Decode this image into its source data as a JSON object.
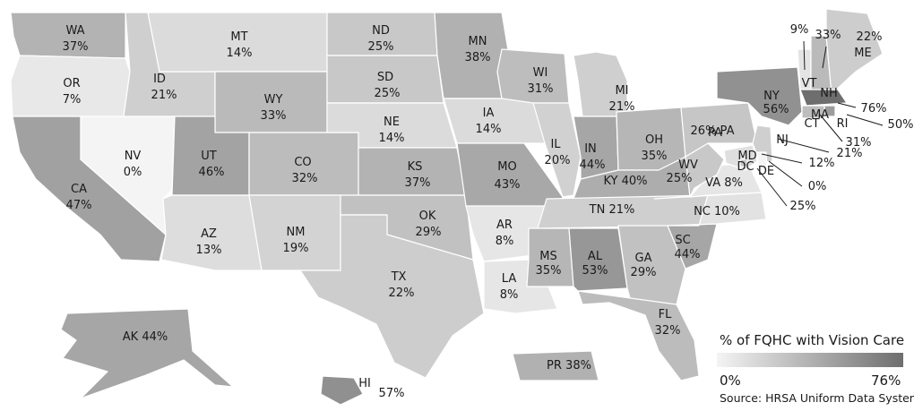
{
  "legend": {
    "title": "% of FQHC with Vision Care",
    "min_label": "0%",
    "max_label": "76%",
    "min_value": 0,
    "max_value": 76,
    "color_low": "#f4f4f4",
    "color_high": "#6e6e6e"
  },
  "source": "Source: HRSA Uniform Data System",
  "states": [
    {
      "id": "WA",
      "label": "WA",
      "value_label": "37%",
      "value": 37
    },
    {
      "id": "OR",
      "label": "OR",
      "value_label": "7%",
      "value": 7
    },
    {
      "id": "CA",
      "label": "CA",
      "value_label": "47%",
      "value": 47
    },
    {
      "id": "NV",
      "label": "NV",
      "value_label": "0%",
      "value": 0
    },
    {
      "id": "ID",
      "label": "ID",
      "value_label": "21%",
      "value": 21
    },
    {
      "id": "MT",
      "label": "MT",
      "value_label": "14%",
      "value": 14
    },
    {
      "id": "WY",
      "label": "WY",
      "value_label": "33%",
      "value": 33
    },
    {
      "id": "UT",
      "label": "UT",
      "value_label": "46%",
      "value": 46
    },
    {
      "id": "AZ",
      "label": "AZ",
      "value_label": "13%",
      "value": 13
    },
    {
      "id": "CO",
      "label": "CO",
      "value_label": "32%",
      "value": 32
    },
    {
      "id": "NM",
      "label": "NM",
      "value_label": "19%",
      "value": 19
    },
    {
      "id": "ND",
      "label": "ND",
      "value_label": "25%",
      "value": 25
    },
    {
      "id": "SD",
      "label": "SD",
      "value_label": "25%",
      "value": 25
    },
    {
      "id": "NE",
      "label": "NE",
      "value_label": "14%",
      "value": 14
    },
    {
      "id": "KS",
      "label": "KS",
      "value_label": "37%",
      "value": 37
    },
    {
      "id": "OK",
      "label": "OK",
      "value_label": "29%",
      "value": 29
    },
    {
      "id": "TX",
      "label": "TX",
      "value_label": "22%",
      "value": 22
    },
    {
      "id": "MN",
      "label": "MN",
      "value_label": "38%",
      "value": 38
    },
    {
      "id": "IA",
      "label": "IA",
      "value_label": "14%",
      "value": 14
    },
    {
      "id": "MO",
      "label": "MO",
      "value_label": "43%",
      "value": 43
    },
    {
      "id": "AR",
      "label": "AR",
      "value_label": "8%",
      "value": 8
    },
    {
      "id": "LA",
      "label": "LA",
      "value_label": "8%",
      "value": 8
    },
    {
      "id": "WI",
      "label": "WI",
      "value_label": "31%",
      "value": 31
    },
    {
      "id": "IL",
      "label": "IL",
      "value_label": "20%",
      "value": 20
    },
    {
      "id": "MI",
      "label": "MI",
      "value_label": "21%",
      "value": 21
    },
    {
      "id": "IN",
      "label": "IN",
      "value_label": "44%",
      "value": 44
    },
    {
      "id": "OH",
      "label": "OH",
      "value_label": "35%",
      "value": 35
    },
    {
      "id": "KY",
      "label": "KY",
      "value_label": "40%",
      "value": 40
    },
    {
      "id": "TN",
      "label": "TN",
      "value_label": "21%",
      "value": 21
    },
    {
      "id": "MS",
      "label": "MS",
      "value_label": "35%",
      "value": 35
    },
    {
      "id": "AL",
      "label": "AL",
      "value_label": "53%",
      "value": 53
    },
    {
      "id": "GA",
      "label": "GA",
      "value_label": "29%",
      "value": 29
    },
    {
      "id": "FL",
      "label": "FL",
      "value_label": "32%",
      "value": 32
    },
    {
      "id": "SC",
      "label": "SC",
      "value_label": "44%",
      "value": 44
    },
    {
      "id": "NC",
      "label": "NC",
      "value_label": "10%",
      "value": 10
    },
    {
      "id": "VA",
      "label": "VA",
      "value_label": "8%",
      "value": 8
    },
    {
      "id": "WV",
      "label": "WV",
      "value_label": "25%",
      "value": 25
    },
    {
      "id": "PA",
      "label": "PA",
      "value_label": "26%",
      "value": 26
    },
    {
      "id": "NY",
      "label": "NY",
      "value_label": "56%",
      "value": 56
    },
    {
      "id": "VT",
      "label": "VT",
      "value_label": "9%",
      "value": 9
    },
    {
      "id": "NH",
      "label": "NH",
      "value_label": "33%",
      "value": 33
    },
    {
      "id": "ME",
      "label": "ME",
      "value_label": "22%",
      "value": 22
    },
    {
      "id": "MA",
      "label": "MA",
      "value_label": "76%",
      "value": 76
    },
    {
      "id": "RI",
      "label": "RI",
      "value_label": "50%",
      "value": 50
    },
    {
      "id": "CT",
      "label": "CT",
      "value_label": "31%",
      "value": 31
    },
    {
      "id": "NJ",
      "label": "NJ",
      "value_label": "21%",
      "value": 21
    },
    {
      "id": "MD",
      "label": "MD",
      "value_label": "12%",
      "value": 12
    },
    {
      "id": "DE",
      "label": "DE",
      "value_label": "0%",
      "value": 0
    },
    {
      "id": "DC",
      "label": "DC",
      "value_label": "25%",
      "value": 25
    },
    {
      "id": "AK",
      "label": "AK",
      "value_label": "44%",
      "value": 44
    },
    {
      "id": "HI",
      "label": "HI",
      "value_label": "57%",
      "value": 57
    },
    {
      "id": "PR",
      "label": "PR",
      "value_label": "38%",
      "value": 38
    }
  ]
}
